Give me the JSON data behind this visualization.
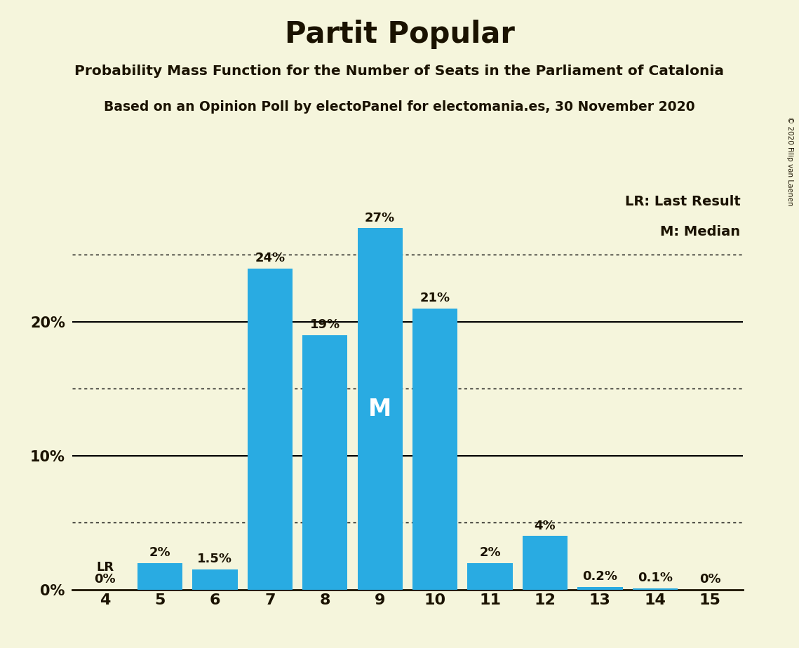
{
  "title": "Partit Popular",
  "subtitle1": "Probability Mass Function for the Number of Seats in the Parliament of Catalonia",
  "subtitle2": "Based on an Opinion Poll by electoPanel for electomania.es, 30 November 2020",
  "copyright": "© 2020 Filip van Laenen",
  "seats": [
    4,
    5,
    6,
    7,
    8,
    9,
    10,
    11,
    12,
    13,
    14,
    15
  ],
  "probabilities": [
    0.0,
    2.0,
    1.5,
    24.0,
    19.0,
    27.0,
    21.0,
    2.0,
    4.0,
    0.2,
    0.1,
    0.0
  ],
  "bar_color": "#29ABE2",
  "background_color": "#F5F5DC",
  "label_color": "#1A1200",
  "median_seat": 9,
  "lr_seat": 4,
  "lr_label": "LR",
  "median_label": "M",
  "legend_lr": "LR: Last Result",
  "legend_m": "M: Median",
  "dotted_lines": [
    5.0,
    15.0,
    25.0
  ],
  "solid_lines": [
    10.0,
    20.0
  ],
  "ylim": [
    0,
    30
  ],
  "xlim_left": 3.4,
  "xlim_right": 15.6,
  "bar_width": 0.82
}
